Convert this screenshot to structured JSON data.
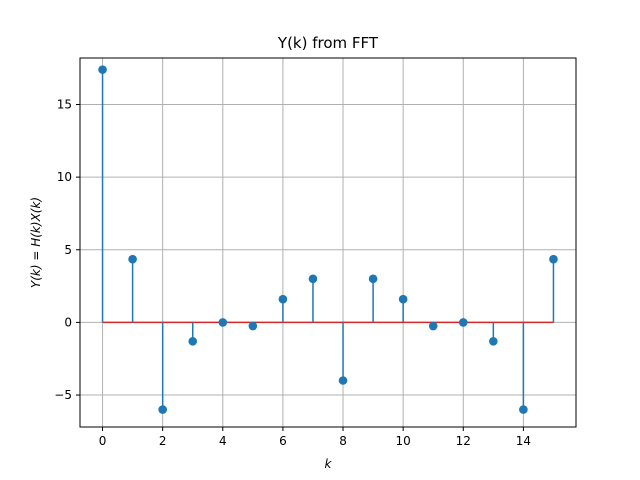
{
  "chart_data": {
    "type": "stem",
    "title": "Y(k) from FFT",
    "xlabel": "k",
    "ylabel": "Y(k) = H(k)X(k)",
    "x": [
      0,
      1,
      2,
      3,
      4,
      5,
      6,
      7,
      8,
      9,
      10,
      11,
      12,
      13,
      14,
      15
    ],
    "values": [
      17.4,
      4.35,
      -6.0,
      -1.3,
      0.0,
      -0.25,
      1.6,
      3.0,
      -4.0,
      3.0,
      1.6,
      -0.25,
      0.0,
      -1.3,
      -6.0,
      4.35
    ],
    "xlim": [
      -0.75,
      15.75
    ],
    "ylim": [
      -7.2,
      18.2
    ],
    "xticks": [
      0,
      2,
      4,
      6,
      8,
      10,
      12,
      14
    ],
    "yticks": [
      -5,
      0,
      5,
      10,
      15
    ],
    "ytick_labels": [
      "−5",
      "0",
      "5",
      "10",
      "15"
    ],
    "grid": true,
    "colors": {
      "stem": "#1f77b4",
      "baseline": "#d62728",
      "grid": "#b0b0b0"
    }
  }
}
